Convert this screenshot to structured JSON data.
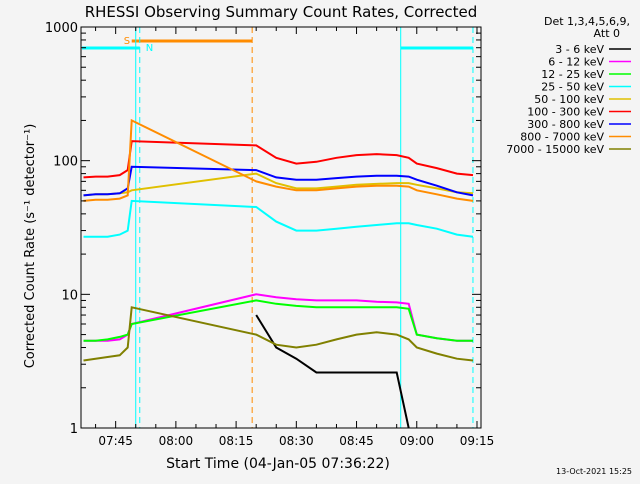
{
  "chart_data": {
    "type": "line",
    "title": "RHESSI Observing Summary Count Rates, Corrected",
    "xlabel": "Start Time (04-Jan-05 07:36:22)",
    "ylabel": "Corrected Count Rate (s⁻¹ detector⁻¹)",
    "y_scale": "log",
    "ylim": [
      1,
      1000
    ],
    "xlim": [
      "07:36:22",
      "09:16"
    ],
    "x_ticks": [
      "07:45",
      "08:00",
      "08:15",
      "08:30",
      "08:45",
      "09:00",
      "09:15"
    ],
    "y_ticks": [
      "1",
      "10",
      "100",
      "1000"
    ],
    "grid": false,
    "legend_position": "right",
    "legend_header": [
      "Det 1,3,4,5,6,9,",
      "Att 0"
    ],
    "footer_date": "13-Oct-2021 15:25",
    "flags": [
      {
        "label": "S",
        "color": "#ff8c00",
        "start": "07:49",
        "end": "08:19"
      },
      {
        "label": "N",
        "color": "#00ffff",
        "start": "07:36",
        "end": "07:51"
      },
      {
        "label": "",
        "color": "#00ffff",
        "start": "08:56",
        "end": "09:14"
      }
    ],
    "vertical_markers": [
      {
        "time": "07:50",
        "color": "#00ffff",
        "style": "solid"
      },
      {
        "time": "07:51",
        "color": "#00ffff",
        "style": "dashed"
      },
      {
        "time": "08:19",
        "color": "#ff8c00",
        "style": "dashed"
      },
      {
        "time": "08:56",
        "color": "#00ffff",
        "style": "solid"
      },
      {
        "time": "09:14",
        "color": "#00ffff",
        "style": "dashed"
      }
    ],
    "gap": [
      "07:49",
      "08:19"
    ],
    "x": [
      "07:37",
      "07:40",
      "07:43",
      "07:46",
      "07:48",
      "07:49",
      "08:20",
      "08:25",
      "08:30",
      "08:35",
      "08:40",
      "08:45",
      "08:50",
      "08:55",
      "08:58",
      "09:00",
      "09:05",
      "09:10",
      "09:14"
    ],
    "series": [
      {
        "name": "3 - 6 keV",
        "color": "#000000",
        "values": [
          null,
          null,
          null,
          null,
          null,
          null,
          7,
          4,
          3.3,
          2.6,
          2.6,
          2.6,
          2.6,
          2.6,
          1,
          null,
          null,
          null,
          null
        ]
      },
      {
        "name": "6 - 12 keV",
        "color": "#ff00ff",
        "values": [
          4.5,
          4.5,
          4.5,
          4.6,
          5,
          6,
          10,
          9.5,
          9.2,
          9.0,
          9.0,
          9.0,
          8.8,
          8.7,
          8.5,
          5,
          4.7,
          4.5,
          4.5
        ]
      },
      {
        "name": "12 - 25 keV",
        "color": "#00ff00",
        "values": [
          4.5,
          4.5,
          4.6,
          4.8,
          5,
          6,
          9,
          8.5,
          8.2,
          8.0,
          8.0,
          8.0,
          8.0,
          8.0,
          7.8,
          5,
          4.7,
          4.5,
          4.5
        ]
      },
      {
        "name": "25 - 50 keV",
        "color": "#00ffff",
        "values": [
          27,
          27,
          27,
          28,
          30,
          50,
          45,
          35,
          30,
          30,
          31,
          32,
          33,
          34,
          34,
          33,
          31,
          28,
          27
        ]
      },
      {
        "name": "50 - 100 keV",
        "color": "#e0c000",
        "values": [
          55,
          56,
          56,
          57,
          58,
          60,
          80,
          68,
          62,
          62,
          64,
          66,
          67,
          68,
          68,
          66,
          62,
          58,
          57
        ]
      },
      {
        "name": "100 - 300 keV",
        "color": "#ff0000",
        "values": [
          75,
          76,
          76,
          78,
          85,
          140,
          130,
          105,
          95,
          98,
          105,
          110,
          112,
          110,
          105,
          95,
          88,
          80,
          78
        ]
      },
      {
        "name": "300 - 800 keV",
        "color": "#0000ff",
        "values": [
          55,
          56,
          56,
          57,
          62,
          90,
          85,
          75,
          72,
          72,
          74,
          76,
          77,
          77,
          76,
          72,
          65,
          58,
          55
        ]
      },
      {
        "name": "800 - 7000 keV",
        "color": "#ff8c00",
        "values": [
          50,
          51,
          51,
          52,
          55,
          200,
          70,
          64,
          60,
          60,
          62,
          64,
          65,
          65,
          64,
          60,
          56,
          52,
          50
        ]
      },
      {
        "name": "7000 - 15000 keV",
        "color": "#808000",
        "values": [
          3.2,
          3.3,
          3.4,
          3.5,
          4,
          8,
          5,
          4.2,
          4.0,
          4.2,
          4.6,
          5.0,
          5.2,
          5.0,
          4.6,
          4.0,
          3.6,
          3.3,
          3.2
        ]
      }
    ]
  }
}
